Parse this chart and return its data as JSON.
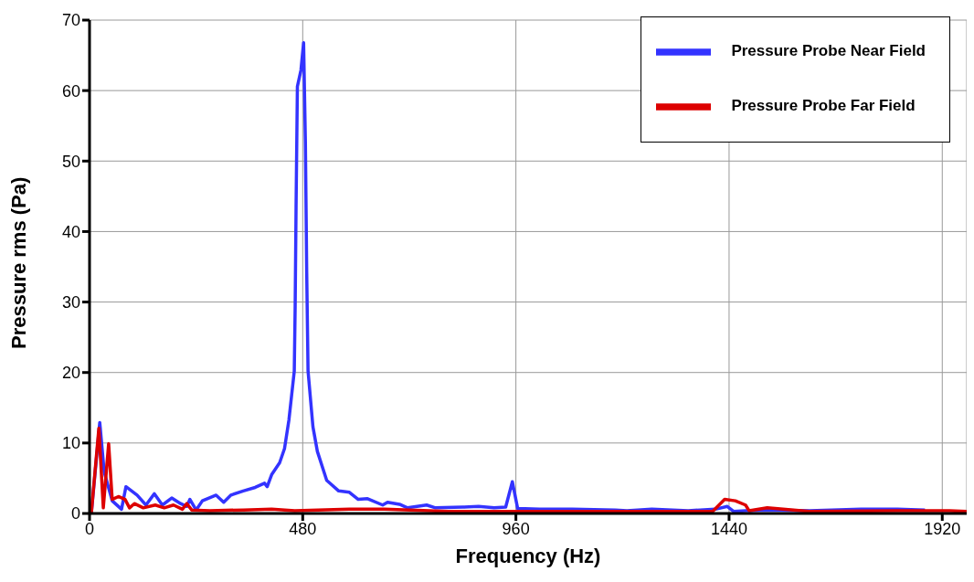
{
  "chart_data": {
    "type": "line",
    "xlabel": "Frequency (Hz)",
    "ylabel": "Pressure rms (Pa)",
    "xlim": [
      0,
      1975
    ],
    "ylim": [
      0,
      70
    ],
    "xticks": [
      0,
      480,
      960,
      1440,
      1920
    ],
    "yticks": [
      0,
      10,
      20,
      30,
      40,
      50,
      60,
      70
    ],
    "grid": true,
    "legend": "top right",
    "marker": "none",
    "line_style": "solid",
    "series": [
      {
        "name": "Pressure Probe Near Field",
        "color": "#3333ff",
        "x": [
          4,
          23,
          33,
          51,
          72,
          82,
          107,
          127,
          146,
          164,
          185,
          205,
          219,
          226,
          240,
          254,
          285,
          302,
          318,
          346,
          373,
          394,
          400,
          410,
          428,
          439,
          449,
          461,
          463,
          465,
          468,
          476,
          482,
          486,
          489,
          492,
          503,
          513,
          534,
          561,
          585,
          605,
          626,
          660,
          671,
          698,
          716,
          759,
          779,
          841,
          876,
          911,
          937,
          952,
          964,
          1013,
          1087,
          1184,
          1210,
          1266,
          1348,
          1409,
          1436,
          1450,
          1477,
          1526,
          1621,
          1737,
          1819,
          1881
        ],
        "values": [
          0,
          12.9,
          5.9,
          1.8,
          0.6,
          3.8,
          2.6,
          1.2,
          2.8,
          1.2,
          2.2,
          1.4,
          1.0,
          2.0,
          0.5,
          1.8,
          2.6,
          1.6,
          2.6,
          3.2,
          3.7,
          4.3,
          3.8,
          5.5,
          7.2,
          9.2,
          13.3,
          20.2,
          29.5,
          43.4,
          60.6,
          62.9,
          66.8,
          52.8,
          34.2,
          20.2,
          12.3,
          8.8,
          4.7,
          3.2,
          3.0,
          2.0,
          2.1,
          1.2,
          1.6,
          1.3,
          0.8,
          1.2,
          0.8,
          0.9,
          1.0,
          0.8,
          0.9,
          4.5,
          0.7,
          0.6,
          0.6,
          0.5,
          0.4,
          0.6,
          0.4,
          0.6,
          1.0,
          0.3,
          0.4,
          0.5,
          0.4,
          0.6,
          0.6,
          0.5
        ]
      },
      {
        "name": "Pressure Probe Far Field",
        "color": "#dd0000",
        "x": [
          4,
          21,
          31,
          43,
          51,
          65,
          80,
          90,
          101,
          121,
          148,
          168,
          189,
          209,
          219,
          230,
          271,
          347,
          410,
          462,
          585,
          664,
          808,
          1046,
          1403,
          1430,
          1454,
          1477,
          1485,
          1526,
          1621,
          1819,
          1936,
          1975
        ],
        "values": [
          0,
          12.1,
          0.8,
          9.9,
          2.0,
          2.4,
          2.0,
          0.8,
          1.4,
          0.8,
          1.2,
          0.8,
          1.2,
          0.6,
          1.4,
          0.5,
          0.4,
          0.5,
          0.6,
          0.4,
          0.6,
          0.6,
          0.3,
          0.3,
          0.3,
          2.0,
          1.8,
          1.2,
          0.4,
          0.8,
          0.3,
          0.4,
          0.4,
          0.3
        ]
      }
    ]
  }
}
